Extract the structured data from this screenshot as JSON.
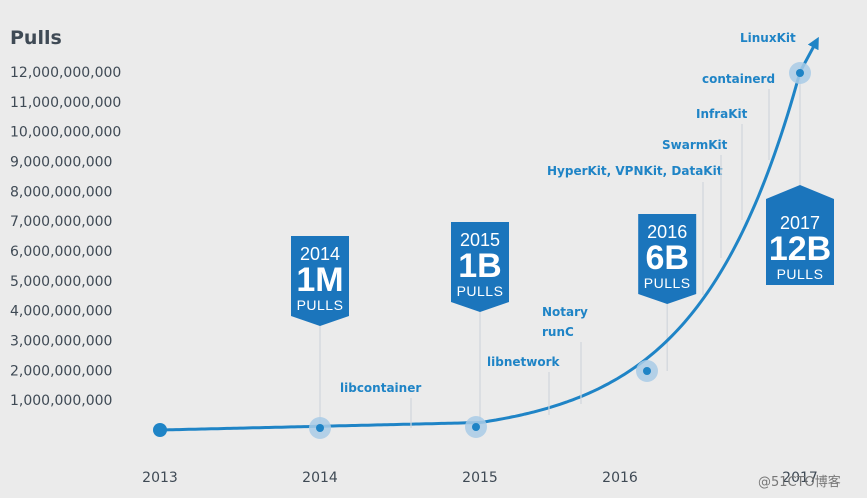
{
  "chart_data": {
    "type": "line",
    "ylabel": "Pulls",
    "yticks": [
      "1,000,000,000",
      "2,000,000,000",
      "3,000,000,000",
      "4,000,000,000",
      "5,000,000,000",
      "6,000,000,000",
      "7,000,000,000",
      "8,000,000,000",
      "9,000,000,000",
      "10,000,000,000",
      "11,000,000,000",
      "12,000,000,000"
    ],
    "xticks": [
      "2013",
      "2014",
      "2015",
      "2016",
      "2017"
    ],
    "ylim": [
      0,
      12500000000
    ],
    "grid": false,
    "points": [
      {
        "x": 2013.0,
        "y": 0
      },
      {
        "x": 2014.0,
        "y": 1000000
      },
      {
        "x": 2015.0,
        "y": 1000000000
      },
      {
        "x": 2016.17,
        "y": 6000000000
      },
      {
        "x": 2017.0,
        "y": 12000000000
      }
    ],
    "callouts": [
      {
        "year": "2014",
        "value": "1M",
        "unit": "PULLS",
        "x": 2014.0
      },
      {
        "year": "2015",
        "value": "1B",
        "unit": "PULLS",
        "x": 2015.0
      },
      {
        "year": "2016",
        "value": "6B",
        "unit": "PULLS",
        "x": 2016.17
      },
      {
        "year": "2017",
        "value": "12B",
        "unit": "PULLS",
        "x": 2017.0
      }
    ],
    "annotations": [
      {
        "text": "libcontainer",
        "x": 2014.58
      },
      {
        "text": "libnetwork",
        "x": 2015.47
      },
      {
        "text": "runC",
        "x": 2015.69
      },
      {
        "text": "Notary",
        "x": 2015.69
      },
      {
        "text": "HyperKit, VPNKit, DataKit",
        "x": 2016.53
      },
      {
        "text": "SwarmKit",
        "x": 2016.78
      },
      {
        "text": "InfraKit",
        "x": 2016.86
      },
      {
        "text": "containerd",
        "x": 2016.93
      },
      {
        "text": "LinuxKit",
        "x": 2017.0
      }
    ]
  },
  "watermark": "@51CTO博客"
}
